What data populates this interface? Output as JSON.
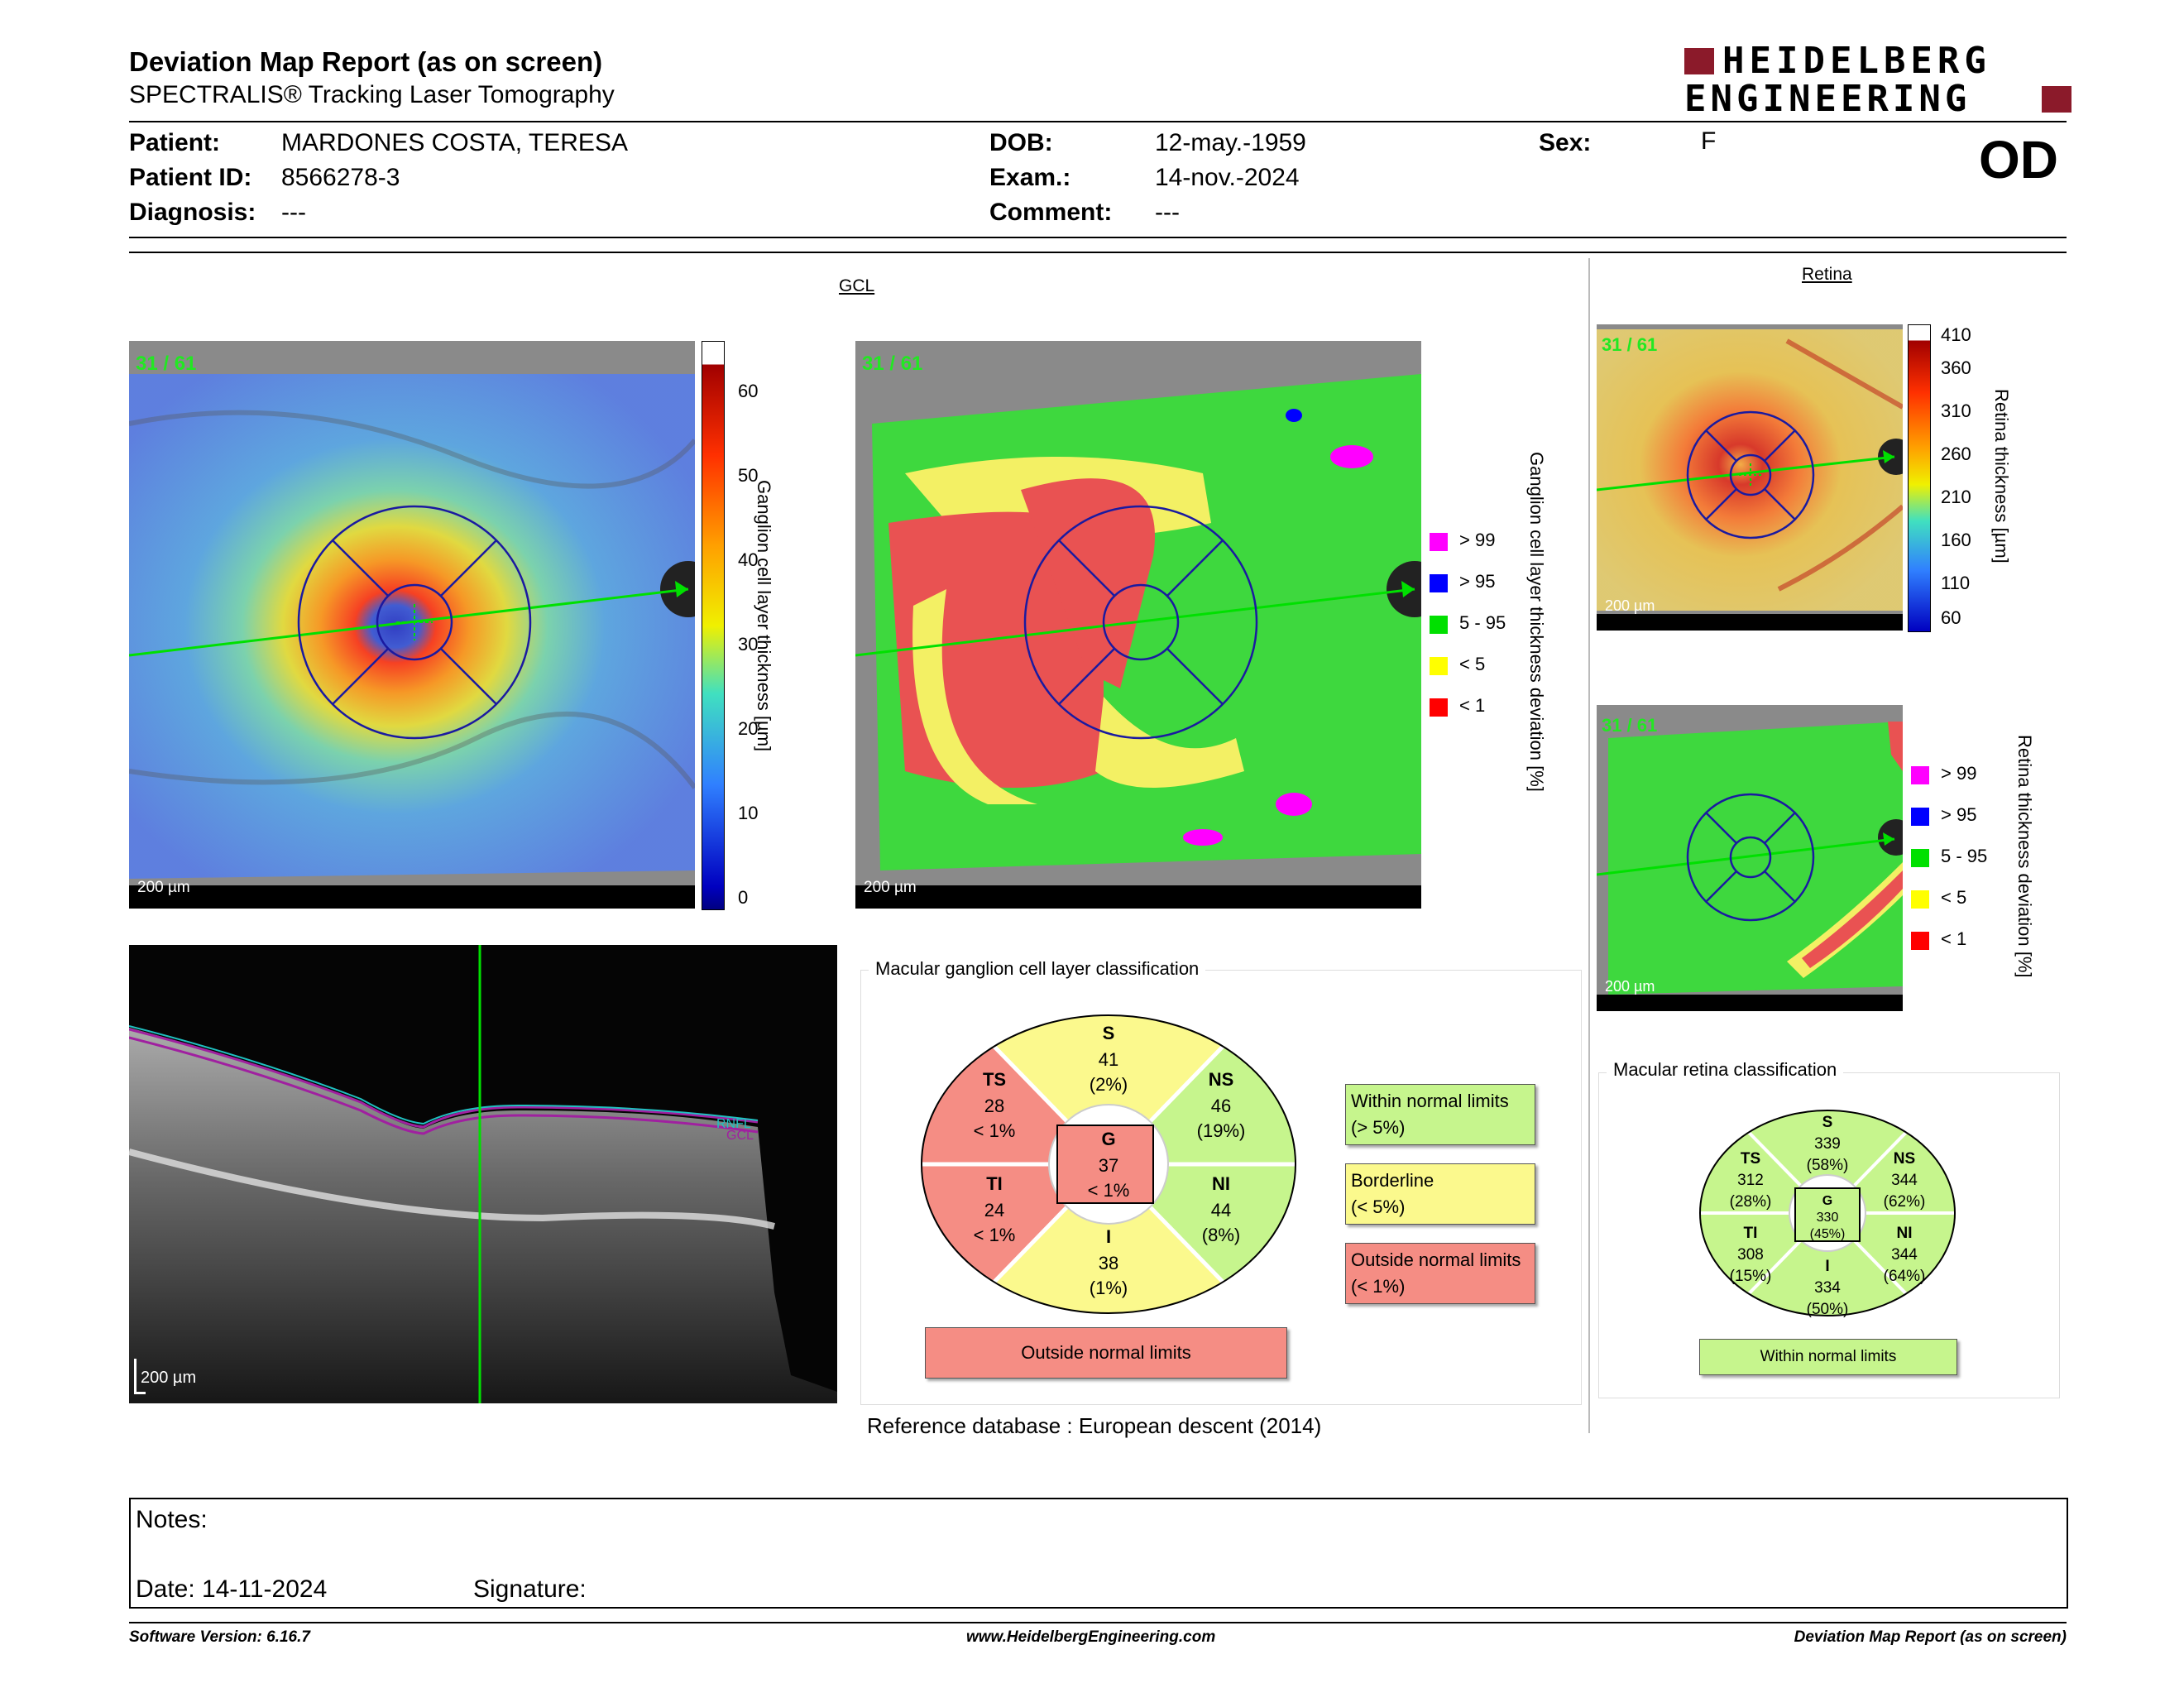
{
  "header": {
    "title": "Deviation Map Report (as on screen)",
    "subtitle": "SPECTRALIS® Tracking Laser Tomography",
    "logo_line1": "HEIDELBERG",
    "logo_line2": "ENGINEERING",
    "eye": "OD"
  },
  "patient": {
    "name_label": "Patient:",
    "name": "MARDONES COSTA, TERESA",
    "id_label": "Patient ID:",
    "id": "8566278-3",
    "diagnosis_label": "Diagnosis:",
    "diagnosis": "---",
    "dob_label": "DOB:",
    "dob": "12-may.-1959",
    "exam_label": "Exam.:",
    "exam": "14-nov.-2024",
    "comment_label": "Comment:",
    "comment": "---",
    "sex_label": "Sex:",
    "sex": "F"
  },
  "gcl": {
    "section_title": "GCL",
    "thickness_map": {
      "scan_label": "31 / 61",
      "scale_label": "200 µm",
      "colorbar_title": "Ganglion cell layer thickness [µm]",
      "colorbar_ticks": [
        "60",
        "50",
        "40",
        "30",
        "20",
        "10",
        "0"
      ]
    },
    "deviation_map": {
      "scan_label": "31 / 61",
      "scale_label": "200 µm",
      "legend_title": "Ganglion cell layer thickness deviation [%]",
      "legend": [
        {
          "label": "> 99",
          "color": "#ff00ff"
        },
        {
          "label": "> 95",
          "color": "#0000ff"
        },
        {
          "label": "5 - 95",
          "color": "#00e000"
        },
        {
          "label": "< 5",
          "color": "#ffff00"
        },
        {
          "label": "< 1",
          "color": "#ff0000"
        }
      ]
    }
  },
  "oct": {
    "scale_label": "200 µm",
    "layer_label_1": "RNFL",
    "layer_label_2": "GCL"
  },
  "gcl_classification": {
    "title": "Macular ganglion cell layer classification",
    "sectors": {
      "S": {
        "name": "S",
        "value": "41",
        "pct": "(2%)"
      },
      "TS": {
        "name": "TS",
        "value": "28",
        "pct": "< 1%"
      },
      "NS": {
        "name": "NS",
        "value": "46",
        "pct": "(19%)"
      },
      "G": {
        "name": "G",
        "value": "37",
        "pct": "< 1%"
      },
      "TI": {
        "name": "TI",
        "value": "24",
        "pct": "< 1%"
      },
      "NI": {
        "name": "NI",
        "value": "44",
        "pct": "(8%)"
      },
      "I": {
        "name": "I",
        "value": "38",
        "pct": "(1%)"
      }
    },
    "result": "Outside normal limits",
    "legend": [
      {
        "line1": "Within normal limits",
        "line2": "(> 5%)",
        "color": "#c6f58d"
      },
      {
        "line1": "Borderline",
        "line2": "(< 5%)",
        "color": "#fbf98d"
      },
      {
        "line1": "Outside normal limits",
        "line2": "(< 1%)",
        "color": "#f58d84"
      }
    ],
    "colors": {
      "green": "#c6f58d",
      "yellow": "#fbf98d",
      "red": "#f58d84"
    }
  },
  "reference": "Reference database :  European descent (2014)",
  "retina": {
    "section_title": "Retina",
    "thickness_map": {
      "scan_label": "31 / 61",
      "scale_label": "200 µm",
      "colorbar_title": "Retina thickness [µm]",
      "colorbar_ticks": [
        "410",
        "360",
        "310",
        "260",
        "210",
        "160",
        "110",
        "60"
      ]
    },
    "deviation_map": {
      "scan_label": "31 / 61",
      "scale_label": "200 µm",
      "legend_title": "Retina thickness deviation [%]",
      "legend": [
        {
          "label": "> 99",
          "color": "#ff00ff"
        },
        {
          "label": "> 95",
          "color": "#0000ff"
        },
        {
          "label": "5 - 95",
          "color": "#00e000"
        },
        {
          "label": "< 5",
          "color": "#ffff00"
        },
        {
          "label": "< 1",
          "color": "#ff0000"
        }
      ]
    }
  },
  "retina_classification": {
    "title": "Macular retina classification",
    "sectors": {
      "S": {
        "name": "S",
        "value": "339",
        "pct": "(58%)"
      },
      "TS": {
        "name": "TS",
        "value": "312",
        "pct": "(28%)"
      },
      "NS": {
        "name": "NS",
        "value": "344",
        "pct": "(62%)"
      },
      "G": {
        "name": "G",
        "value": "330",
        "pct": "(45%)"
      },
      "TI": {
        "name": "TI",
        "value": "308",
        "pct": "(15%)"
      },
      "NI": {
        "name": "NI",
        "value": "344",
        "pct": "(64%)"
      },
      "I": {
        "name": "I",
        "value": "334",
        "pct": "(50%)"
      }
    },
    "result": "Within normal limits"
  },
  "notes": {
    "notes_label": "Notes:",
    "date_label": "Date: 14-11-2024",
    "signature_label": "Signature:"
  },
  "footer": {
    "left": "Software Version: 6.16.7",
    "center": "www.HeidelbergEngineering.com",
    "right": "Deviation Map Report (as on screen)"
  }
}
